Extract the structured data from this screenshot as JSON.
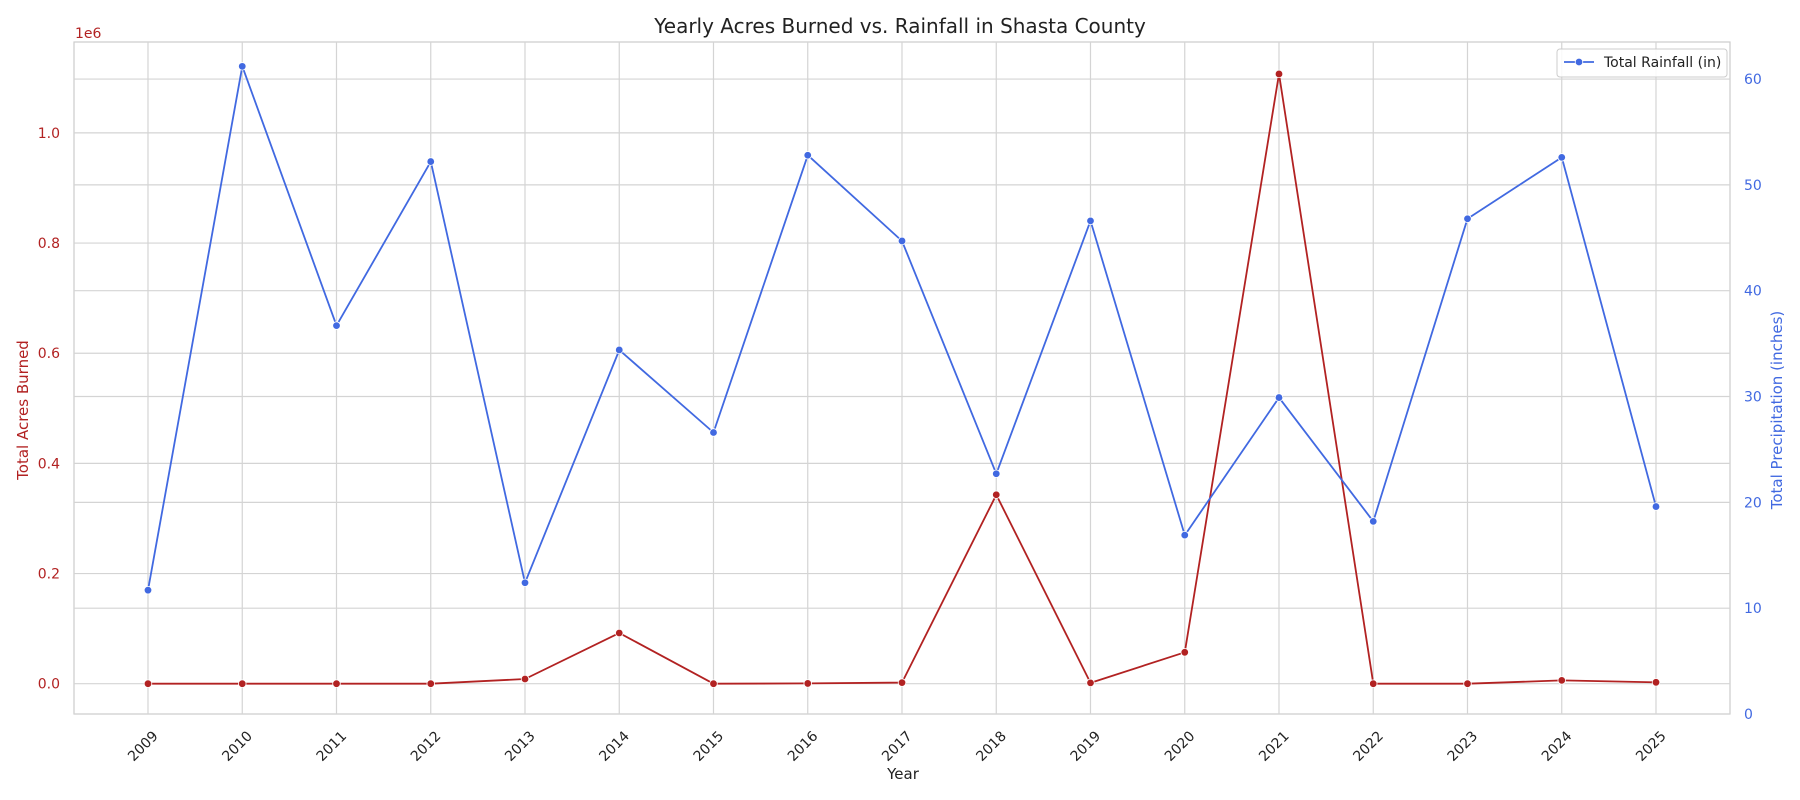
{
  "chart_data": {
    "type": "line",
    "title": "Yearly Acres Burned vs. Rainfall in Shasta County",
    "xlabel": "Year",
    "ylabel_left": "Total Acres Burned",
    "ylabel_right": "Total Precipitation (inches)",
    "left_offset_label": "1e6",
    "categories": [
      "2009",
      "2010",
      "2011",
      "2012",
      "2013",
      "2014",
      "2015",
      "2016",
      "2017",
      "2018",
      "2019",
      "2020",
      "2021",
      "2022",
      "2023",
      "2024",
      "2025"
    ],
    "series": [
      {
        "axis": "left",
        "color": "#b22222",
        "values": [
          0,
          0,
          0,
          0,
          8500,
          92000,
          0,
          500,
          2000,
          343000,
          1500,
          57000,
          1107000,
          0,
          0,
          6000,
          2500
        ]
      },
      {
        "name": "Total Rainfall (in)",
        "axis": "right",
        "color": "#4169e1",
        "values": [
          11.7,
          61.2,
          36.7,
          52.2,
          12.4,
          34.4,
          26.6,
          52.8,
          44.7,
          22.7,
          46.6,
          16.9,
          29.9,
          18.2,
          46.8,
          52.6,
          19.6
        ]
      }
    ],
    "ylim_left": [
      -55000,
      1165000
    ],
    "ylim_right": [
      0,
      63.5
    ],
    "yticks_left": [
      0,
      0.2,
      0.4,
      0.6,
      0.8,
      1.0
    ],
    "yticks_left_labels": [
      "0.0",
      "0.2",
      "0.4",
      "0.6",
      "0.8",
      "1.0"
    ],
    "yticks_right": [
      0,
      10,
      20,
      30,
      40,
      50,
      60
    ],
    "grid": true,
    "legend_position": "top-right"
  }
}
